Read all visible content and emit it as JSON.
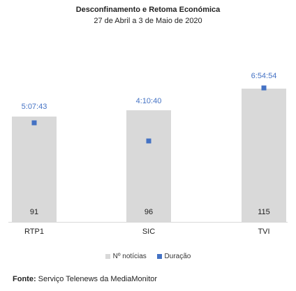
{
  "chart_data": {
    "type": "bar",
    "title": "Desconfinamento  e Retoma Económica",
    "subtitle": "27 de Abril a 3 de Maio de 2020",
    "categories": [
      "RTP1",
      "SIC",
      "TVI"
    ],
    "series": [
      {
        "name": "Nº notícias",
        "values": [
          91,
          96,
          115
        ],
        "color": "#d9d9d9"
      },
      {
        "name": "Duração",
        "values": [
          "5:07:43",
          "4:10:40",
          "6:54:54"
        ],
        "color": "#4472c4"
      }
    ],
    "legend_position": "bottom",
    "grid": false
  },
  "source": {
    "label": "Fonte:",
    "text": " Serviço Telenews da MediaMonitor"
  }
}
